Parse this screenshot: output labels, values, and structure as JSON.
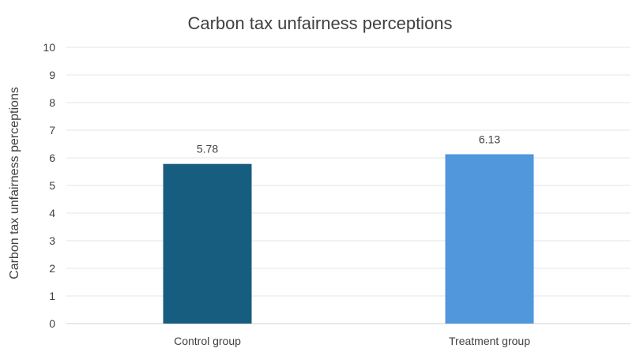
{
  "chart_data": {
    "type": "bar",
    "title": "Carbon tax unfairness perceptions",
    "xlabel": "",
    "ylabel": "Carbon tax unfairness perceptions",
    "categories": [
      "Control group",
      "Treatment group"
    ],
    "values": [
      5.78,
      6.13
    ],
    "data_labels": [
      "5.78",
      "6.13"
    ],
    "bar_colors": [
      "#175d80",
      "#5197db"
    ],
    "ylim": [
      0,
      10
    ],
    "yticks": [
      0,
      1,
      2,
      3,
      4,
      5,
      6,
      7,
      8,
      9,
      10
    ],
    "grid": true,
    "legend": "none"
  }
}
